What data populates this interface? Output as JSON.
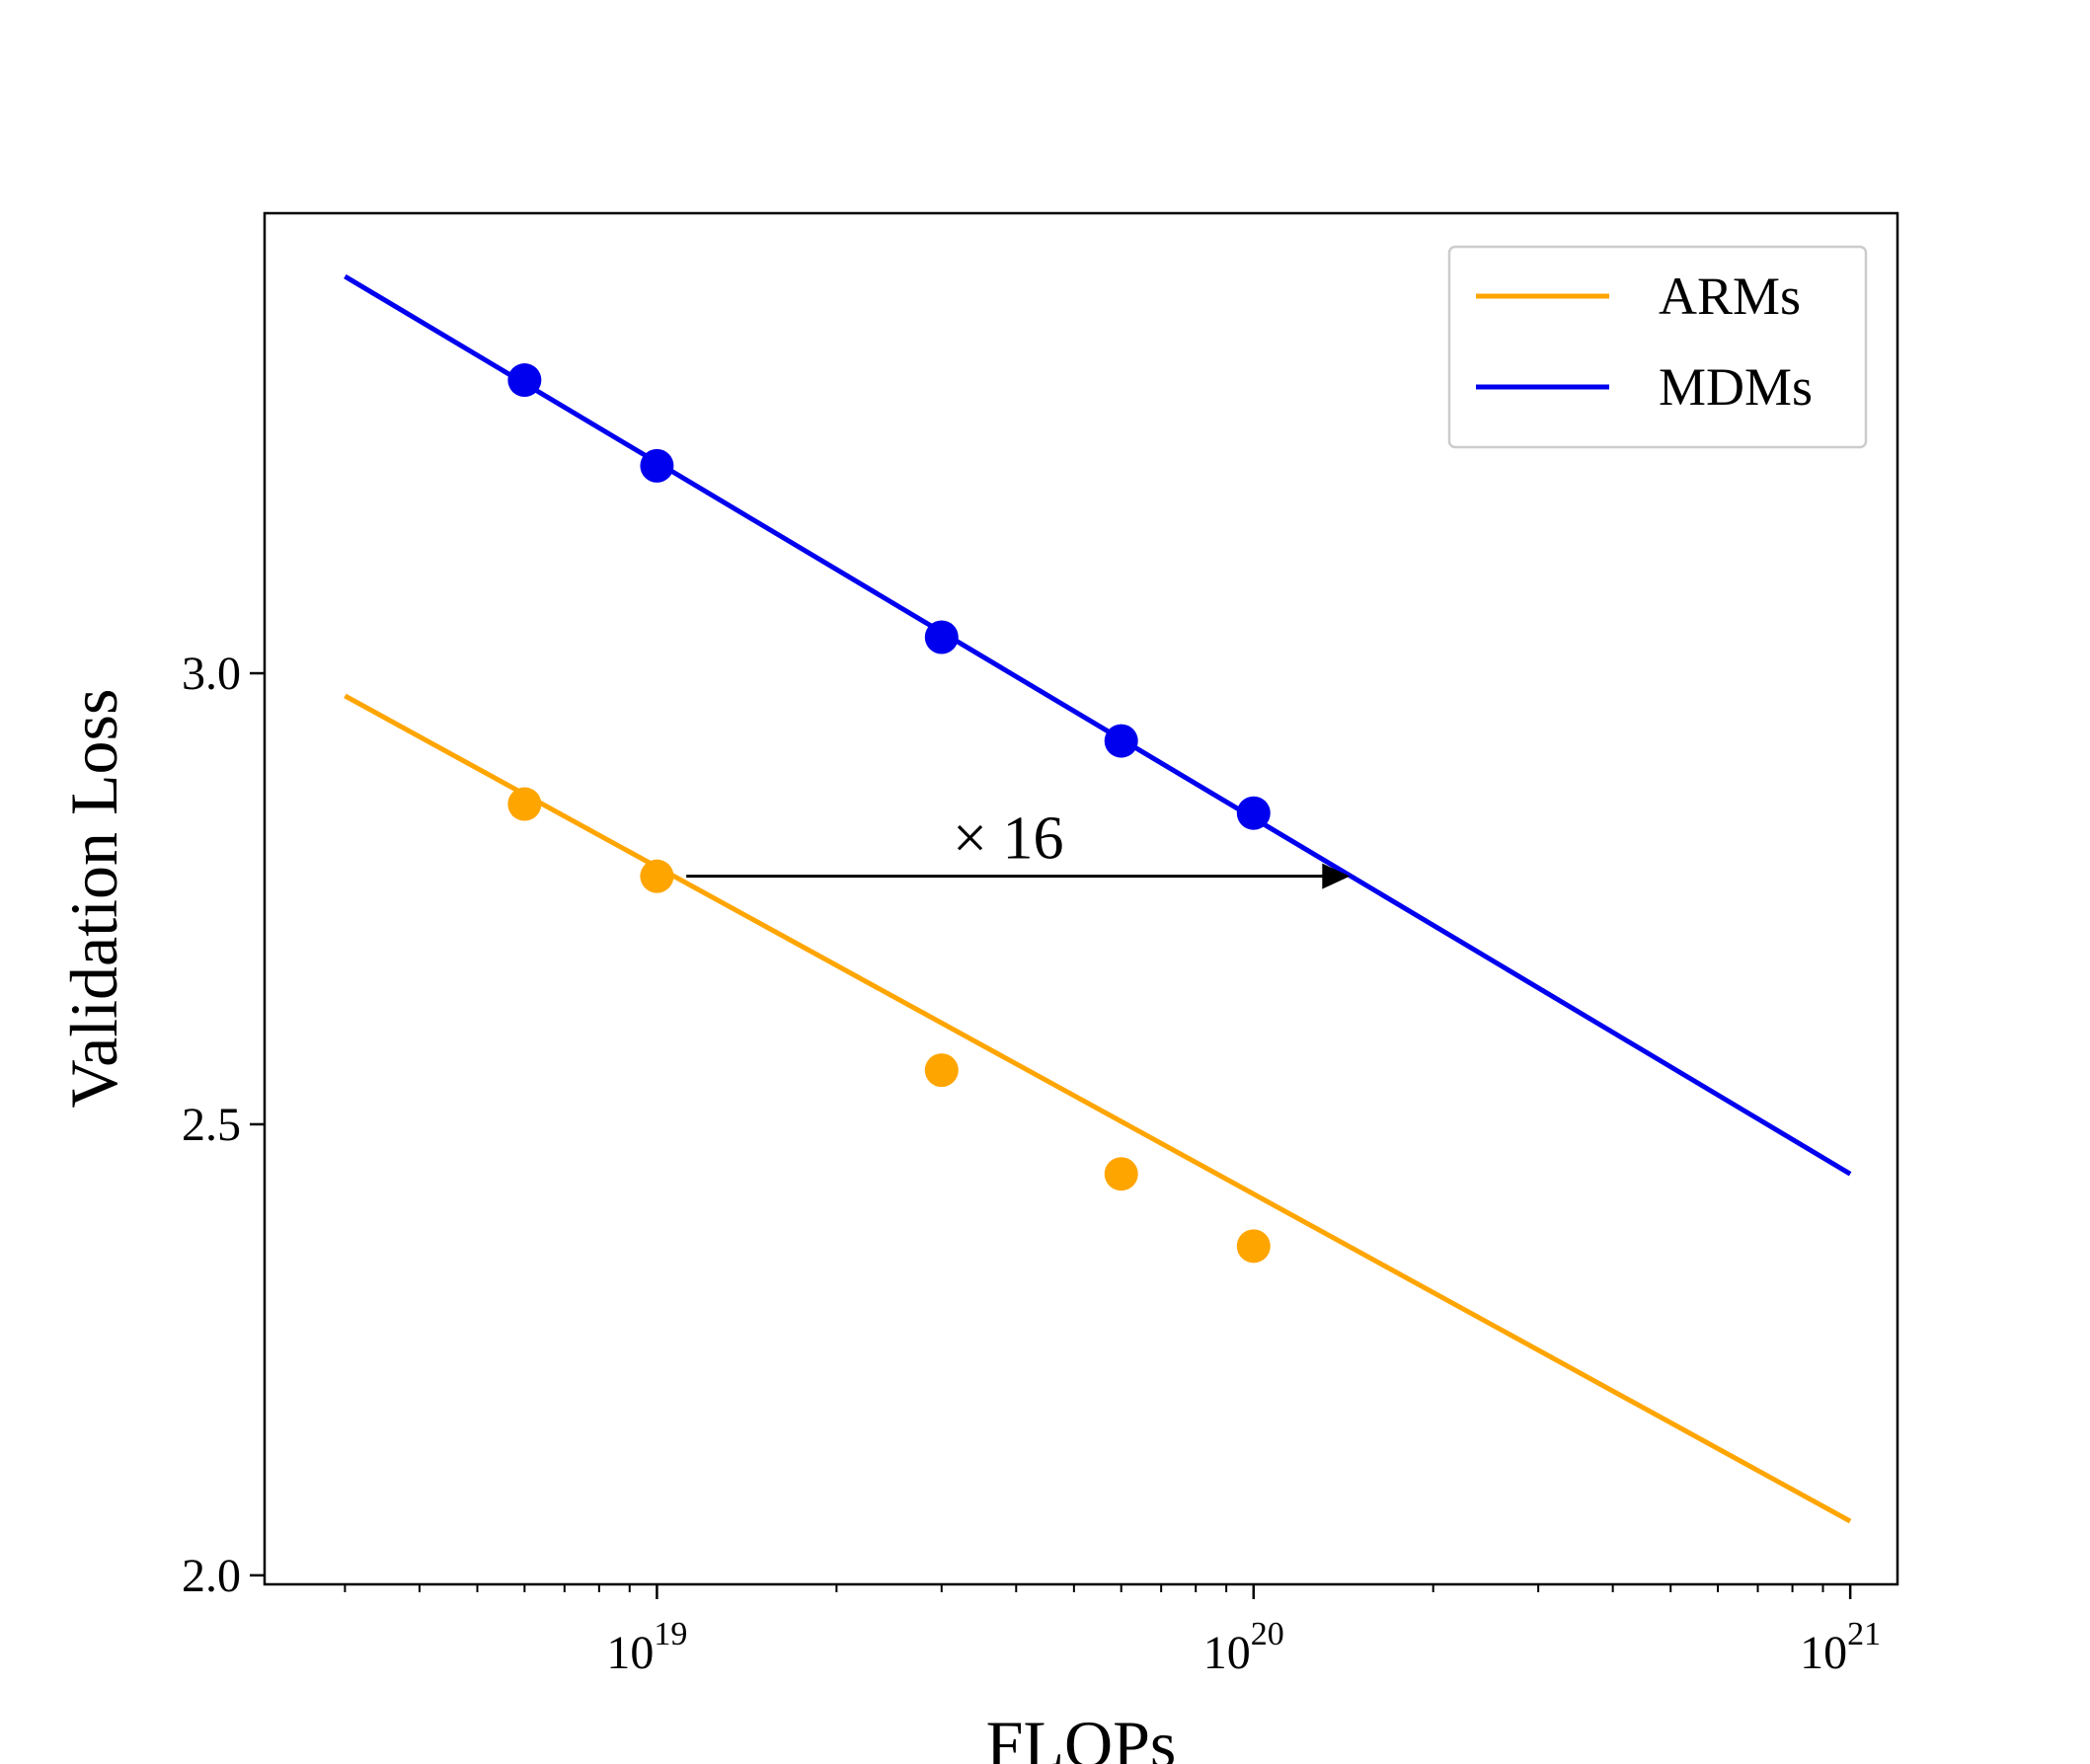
{
  "chart_data": {
    "type": "line",
    "xscale": "log",
    "xlabel": "FLOPs",
    "ylabel": "Validation Loss",
    "xlim": [
      2.2e+18,
      1.2e+21
    ],
    "ylim": [
      1.99,
      3.51
    ],
    "x_major_ticks": [
      {
        "value": 1e+19,
        "base": "10",
        "exp": "19"
      },
      {
        "value": 1e+20,
        "base": "10",
        "exp": "20"
      },
      {
        "value": 1e+21,
        "base": "10",
        "exp": "21"
      }
    ],
    "y_ticks": [
      {
        "value": 2.0,
        "label": "2.0"
      },
      {
        "value": 2.5,
        "label": "2.5"
      },
      {
        "value": 3.0,
        "label": "3.0"
      }
    ],
    "grid": false,
    "legend_position": "top-right",
    "series": [
      {
        "name": "ARMs",
        "color": "#FFA500",
        "fit_line": [
          [
            3e+18,
            2.975
          ],
          [
            1e+21,
            2.06
          ]
        ],
        "points": [
          [
            6e+18,
            2.855
          ],
          [
            1e+19,
            2.775
          ],
          [
            3e+19,
            2.56
          ],
          [
            6e+19,
            2.445
          ],
          [
            1e+20,
            2.365
          ]
        ]
      },
      {
        "name": "MDMs",
        "color": "#0000EE",
        "fit_line": [
          [
            3e+18,
            3.44
          ],
          [
            1e+21,
            2.445
          ]
        ],
        "points": [
          [
            6e+18,
            3.325
          ],
          [
            1e+19,
            3.23
          ],
          [
            3e+19,
            3.04
          ],
          [
            6e+19,
            2.925
          ],
          [
            1e+20,
            2.845
          ]
        ]
      }
    ],
    "annotations": [
      {
        "text": "× 16",
        "arrow_from": [
          1.12e+19,
          2.775
        ],
        "arrow_to": [
          1.45e+20,
          2.775
        ],
        "color": "#000000"
      }
    ]
  }
}
